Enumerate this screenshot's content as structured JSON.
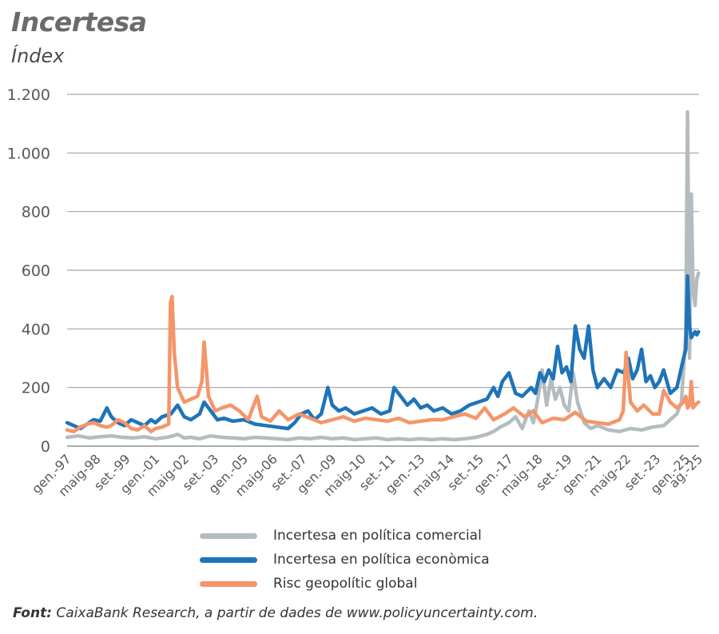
{
  "chart_data": {
    "type": "line",
    "title": "Incertesa",
    "ylabel": "Índex",
    "ylim": [
      0,
      1200
    ],
    "yticks": [
      0,
      200,
      400,
      600,
      800,
      1000,
      1200
    ],
    "ytick_labels": [
      "0",
      "200",
      "400",
      "600",
      "800",
      "1.000",
      "1.200"
    ],
    "xlim": [
      1997.0,
      2025.6
    ],
    "xtick_positions": [
      1997.0,
      1998.33,
      1999.67,
      2001.0,
      2002.33,
      2003.67,
      2005.0,
      2006.33,
      2007.67,
      2009.0,
      2010.33,
      2011.67,
      2013.0,
      2014.33,
      2015.67,
      2017.0,
      2018.33,
      2019.67,
      2021.0,
      2022.33,
      2023.67,
      2025.0,
      2025.58
    ],
    "xtick_labels": [
      "gen.-97",
      "maig-98",
      "set.-99",
      "gen.-01",
      "maig-02",
      "set.-03",
      "gen.-05",
      "maig-06",
      "set.-07",
      "gen.-09",
      "maig-10",
      "set.-11",
      "gen.-13",
      "maig-14",
      "set.-15",
      "gen.-17",
      "maig-18",
      "set.-19",
      "gen.-21",
      "maig-22",
      "set.-23",
      "gen.-25",
      "ag.-25"
    ],
    "grid": true,
    "legend_position": "bottom",
    "series": [
      {
        "name": "Incertesa en política comercial",
        "color": "#b4bcc0",
        "x": [
          1997.0,
          1997.5,
          1998.0,
          1998.5,
          1999.0,
          1999.5,
          2000.0,
          2000.5,
          2001.0,
          2001.5,
          2001.8,
          2002.0,
          2002.3,
          2002.6,
          2003.0,
          2003.5,
          2004.0,
          2004.5,
          2005.0,
          2005.5,
          2006.0,
          2006.5,
          2007.0,
          2007.5,
          2008.0,
          2008.5,
          2009.0,
          2009.5,
          2010.0,
          2010.5,
          2011.0,
          2011.5,
          2012.0,
          2012.5,
          2013.0,
          2013.5,
          2014.0,
          2014.5,
          2015.0,
          2015.5,
          2016.0,
          2016.3,
          2016.6,
          2017.0,
          2017.3,
          2017.6,
          2017.9,
          2018.1,
          2018.3,
          2018.5,
          2018.7,
          2018.9,
          2019.1,
          2019.3,
          2019.5,
          2019.7,
          2019.9,
          2020.1,
          2020.4,
          2020.7,
          2021.0,
          2021.5,
          2022.0,
          2022.5,
          2023.0,
          2023.5,
          2024.0,
          2024.3,
          2024.6,
          2024.8,
          2025.0,
          2025.08,
          2025.17,
          2025.25,
          2025.33,
          2025.42,
          2025.5,
          2025.58
        ],
        "values": [
          30,
          35,
          28,
          32,
          35,
          30,
          28,
          32,
          25,
          30,
          35,
          40,
          28,
          30,
          25,
          35,
          30,
          28,
          25,
          30,
          28,
          25,
          22,
          28,
          25,
          30,
          25,
          28,
          22,
          25,
          28,
          22,
          25,
          22,
          25,
          22,
          25,
          22,
          25,
          30,
          40,
          50,
          65,
          80,
          100,
          60,
          120,
          80,
          160,
          260,
          140,
          230,
          160,
          200,
          140,
          120,
          250,
          150,
          80,
          60,
          70,
          55,
          50,
          60,
          55,
          65,
          70,
          90,
          110,
          150,
          380,
          1140,
          300,
          860,
          540,
          480,
          570,
          590
        ]
      },
      {
        "name": "Incertesa en política econòmica",
        "color": "#1f74b8",
        "x": [
          1997.0,
          1997.3,
          1997.6,
          1997.9,
          1998.2,
          1998.5,
          1998.8,
          1999.0,
          1999.3,
          1999.6,
          1999.9,
          2000.2,
          2000.5,
          2000.8,
          2001.0,
          2001.3,
          2001.7,
          2002.0,
          2002.3,
          2002.6,
          2003.0,
          2003.2,
          2003.5,
          2003.8,
          2004.1,
          2004.5,
          2005.0,
          2005.5,
          2006.0,
          2006.5,
          2007.0,
          2007.3,
          2007.6,
          2007.9,
          2008.2,
          2008.5,
          2008.8,
          2009.0,
          2009.3,
          2009.6,
          2010.0,
          2010.4,
          2010.8,
          2011.2,
          2011.6,
          2011.8,
          2012.1,
          2012.4,
          2012.7,
          2013.0,
          2013.3,
          2013.6,
          2014.0,
          2014.4,
          2014.8,
          2015.2,
          2015.6,
          2016.0,
          2016.3,
          2016.5,
          2016.7,
          2017.0,
          2017.3,
          2017.6,
          2018.0,
          2018.2,
          2018.4,
          2018.6,
          2018.8,
          2019.0,
          2019.2,
          2019.4,
          2019.6,
          2019.8,
          2020.0,
          2020.2,
          2020.4,
          2020.6,
          2020.8,
          2021.0,
          2021.3,
          2021.6,
          2021.9,
          2022.2,
          2022.4,
          2022.6,
          2022.8,
          2023.0,
          2023.2,
          2023.4,
          2023.6,
          2023.8,
          2024.0,
          2024.3,
          2024.6,
          2024.9,
          2025.0,
          2025.08,
          2025.17,
          2025.25,
          2025.33,
          2025.42,
          2025.5,
          2025.58
        ],
        "values": [
          80,
          70,
          60,
          75,
          90,
          85,
          130,
          100,
          80,
          70,
          90,
          80,
          70,
          90,
          80,
          100,
          110,
          140,
          100,
          90,
          110,
          150,
          120,
          90,
          95,
          85,
          90,
          75,
          70,
          65,
          60,
          80,
          110,
          120,
          90,
          110,
          200,
          140,
          120,
          130,
          110,
          120,
          130,
          110,
          120,
          200,
          170,
          140,
          160,
          130,
          140,
          120,
          130,
          110,
          120,
          140,
          150,
          160,
          200,
          170,
          220,
          250,
          180,
          170,
          200,
          180,
          250,
          220,
          260,
          230,
          340,
          250,
          270,
          220,
          410,
          330,
          300,
          410,
          260,
          200,
          230,
          200,
          260,
          250,
          300,
          230,
          260,
          330,
          220,
          240,
          200,
          220,
          260,
          180,
          200,
          300,
          330,
          580,
          410,
          370,
          380,
          390,
          380,
          390
        ]
      },
      {
        "name": "Risc geopolític global",
        "color": "#f4956a",
        "x": [
          1997.0,
          1997.3,
          1997.6,
          1997.9,
          1998.2,
          1998.5,
          1998.8,
          1999.0,
          1999.3,
          1999.6,
          1999.9,
          2000.2,
          2000.5,
          2000.8,
          2001.0,
          2001.3,
          2001.6,
          2001.68,
          2001.75,
          2001.85,
          2002.0,
          2002.3,
          2002.6,
          2002.9,
          2003.1,
          2003.2,
          2003.4,
          2003.7,
          2004.0,
          2004.4,
          2004.8,
          2005.2,
          2005.6,
          2005.8,
          2006.2,
          2006.6,
          2007.0,
          2007.5,
          2008.0,
          2008.5,
          2009.0,
          2009.5,
          2010.0,
          2010.5,
          2011.0,
          2011.5,
          2012.0,
          2012.5,
          2013.0,
          2013.5,
          2014.0,
          2014.5,
          2015.0,
          2015.5,
          2015.9,
          2016.3,
          2016.8,
          2017.2,
          2017.7,
          2018.1,
          2018.5,
          2019.0,
          2019.5,
          2020.0,
          2020.5,
          2021.0,
          2021.5,
          2022.0,
          2022.17,
          2022.3,
          2022.5,
          2022.8,
          2023.1,
          2023.5,
          2023.8,
          2024.0,
          2024.3,
          2024.6,
          2024.9,
          2025.0,
          2025.08,
          2025.17,
          2025.25,
          2025.33,
          2025.42,
          2025.5,
          2025.58
        ],
        "values": [
          55,
          50,
          65,
          75,
          80,
          70,
          65,
          70,
          90,
          80,
          60,
          55,
          70,
          50,
          60,
          65,
          75,
          490,
          510,
          320,
          200,
          150,
          160,
          170,
          220,
          355,
          170,
          120,
          130,
          140,
          120,
          90,
          170,
          100,
          85,
          120,
          90,
          110,
          95,
          80,
          90,
          100,
          85,
          95,
          90,
          85,
          95,
          80,
          85,
          90,
          90,
          100,
          110,
          95,
          130,
          90,
          110,
          130,
          100,
          120,
          80,
          95,
          90,
          115,
          85,
          80,
          75,
          90,
          120,
          320,
          150,
          120,
          140,
          110,
          110,
          190,
          150,
          130,
          150,
          170,
          130,
          140,
          220,
          130,
          140,
          145,
          150
        ]
      }
    ]
  },
  "legend": {
    "items": [
      {
        "label": "Incertesa en política comercial",
        "color": "#b4bcc0"
      },
      {
        "label": "Incertesa en política econòmica",
        "color": "#1f74b8"
      },
      {
        "label": "Risc geopolític global",
        "color": "#f4956a"
      }
    ]
  },
  "source": {
    "label": "Font:",
    "text": " CaixaBank Research, a partir de dades de www.policyuncertainty.com."
  }
}
